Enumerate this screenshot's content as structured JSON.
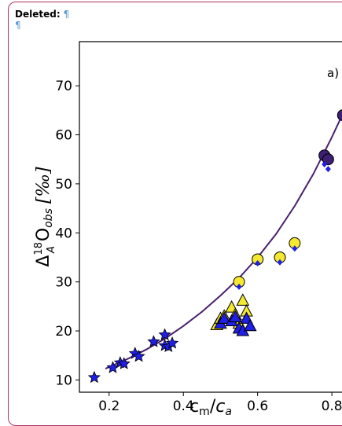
{
  "balloon": {
    "label": "Deleted:",
    "pilcrow": "¶"
  },
  "chart_data": {
    "type": "scatter",
    "panel_label": "a)",
    "xlabel_main": "c",
    "xlabel_main_sub": "m",
    "xlabel_slash": "/",
    "xlabel_italic": "c",
    "xlabel_italic_sub": "a",
    "ylabel_delta": "Δ",
    "ylabel_sup": "18",
    "ylabel_sub": "A",
    "ylabel_O": "O",
    "ylabel_obs": "obs",
    "ylabel_unit": "[‰]",
    "xlim": [
      0.12,
      0.84
    ],
    "ylim": [
      7.5,
      79
    ],
    "x_ticks": [
      "0.2",
      "0.4",
      "0.6",
      "0.8"
    ],
    "x_tick_values": [
      0.2,
      0.4,
      0.6,
      0.8
    ],
    "y_ticks": [
      "10",
      "20",
      "30",
      "40",
      "50",
      "60",
      "70"
    ],
    "y_tick_values": [
      10,
      20,
      30,
      40,
      50,
      60,
      70
    ],
    "curve": {
      "x": [
        0.19,
        0.25,
        0.3,
        0.35,
        0.4,
        0.45,
        0.5,
        0.55,
        0.6,
        0.65,
        0.7,
        0.75,
        0.8,
        0.84
      ],
      "y": [
        12.3,
        14.3,
        16.2,
        18.4,
        21.0,
        23.9,
        27.2,
        30.8,
        35.0,
        39.8,
        45.5,
        52.0,
        59.5,
        66.0
      ]
    },
    "series": [
      {
        "marker": "star",
        "color": "#1f1fe6",
        "points": [
          [
            0.16,
            10.5
          ],
          [
            0.21,
            12.5
          ],
          [
            0.23,
            13.5
          ],
          [
            0.24,
            13.3
          ],
          [
            0.27,
            15.4
          ],
          [
            0.28,
            14.8
          ],
          [
            0.32,
            17.8
          ],
          [
            0.35,
            19.2
          ],
          [
            0.35,
            17.0
          ],
          [
            0.36,
            16.8
          ],
          [
            0.37,
            17.5
          ]
        ]
      },
      {
        "marker": "triangle",
        "color": "#f5e830",
        "points": [
          [
            0.49,
            21.2
          ],
          [
            0.5,
            22.5
          ],
          [
            0.51,
            23.0
          ],
          [
            0.53,
            24.8
          ],
          [
            0.54,
            23.3
          ],
          [
            0.55,
            21.5
          ],
          [
            0.56,
            26.2
          ],
          [
            0.57,
            24.0
          ]
        ]
      },
      {
        "marker": "triangle",
        "color": "#1f1fe6",
        "points": [
          [
            0.5,
            21.5
          ],
          [
            0.51,
            22.5
          ],
          [
            0.53,
            22.0
          ],
          [
            0.54,
            22.8
          ],
          [
            0.55,
            20.5
          ],
          [
            0.56,
            20.0
          ],
          [
            0.57,
            22.5
          ],
          [
            0.58,
            21.0
          ]
        ]
      },
      {
        "marker": "circle",
        "color": "#f5e830",
        "points": [
          [
            0.55,
            30.0
          ],
          [
            0.6,
            34.6
          ],
          [
            0.66,
            35.0
          ],
          [
            0.7,
            37.9
          ]
        ]
      },
      {
        "marker": "circle",
        "color": "#3d1f73",
        "points": [
          [
            0.78,
            55.8
          ],
          [
            0.79,
            55.0
          ],
          [
            0.83,
            64.0
          ]
        ]
      },
      {
        "marker": "diamond",
        "color": "#1f1fe6",
        "points": [
          [
            0.55,
            29.0
          ],
          [
            0.6,
            33.8
          ],
          [
            0.66,
            34.0
          ],
          [
            0.7,
            36.8
          ],
          [
            0.78,
            54.0
          ],
          [
            0.79,
            53.0
          ],
          [
            0.84,
            61.5
          ]
        ]
      }
    ]
  }
}
